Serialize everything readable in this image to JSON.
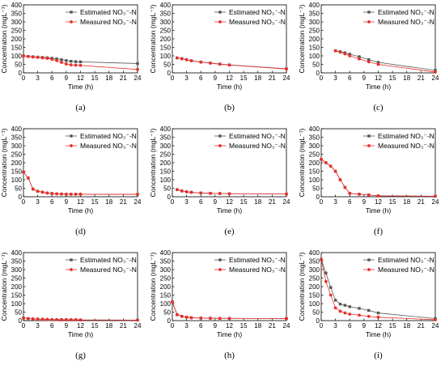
{
  "figure": {
    "background": "#ffffff"
  },
  "style": {
    "estimated_color": "#555555",
    "measured_color": "#e8302c"
  },
  "chart_data": [
    {
      "type": "line",
      "caption": "(a)",
      "xlabel": "Time (h)",
      "ylabel": "Concentration (mgL⁻¹)",
      "xlim": [
        0,
        24
      ],
      "ylim": [
        0,
        400
      ],
      "xticks": [
        0,
        3,
        6,
        9,
        12,
        15,
        18,
        21,
        24
      ],
      "yticks": [
        0,
        50,
        100,
        150,
        200,
        250,
        300,
        350,
        400
      ],
      "legend_position": "top-right",
      "series": [
        {
          "name": "Estimated NO₃⁻-N",
          "marker": "square",
          "x": [
            0,
            1,
            2,
            3,
            4,
            5,
            6,
            7,
            8,
            9,
            10,
            11,
            12,
            24
          ],
          "y": [
            100,
            97,
            95,
            93,
            91,
            89,
            86,
            82,
            78,
            72,
            68,
            66,
            65,
            55
          ]
        },
        {
          "name": "Measured NO₃⁻-N",
          "marker": "circle",
          "x": [
            0,
            1,
            2,
            3,
            4,
            5,
            6,
            7,
            8,
            9,
            10,
            11,
            12,
            24
          ],
          "y": [
            100,
            96,
            93,
            91,
            88,
            85,
            80,
            72,
            62,
            52,
            47,
            45,
            44,
            20
          ]
        }
      ]
    },
    {
      "type": "line",
      "caption": "(b)",
      "xlabel": "Time (h)",
      "ylabel": "Concentration (mgL⁻¹)",
      "xlim": [
        0,
        24
      ],
      "ylim": [
        0,
        400
      ],
      "xticks": [
        0,
        3,
        6,
        9,
        12,
        15,
        18,
        21,
        24
      ],
      "yticks": [
        0,
        50,
        100,
        150,
        200,
        250,
        300,
        350,
        400
      ],
      "legend_position": "top-right",
      "series": [
        {
          "name": "Estimated NO₃⁻-N",
          "marker": "square",
          "x": [
            1,
            2,
            3,
            4,
            6,
            8,
            10,
            12,
            24
          ],
          "y": [
            88,
            84,
            78,
            72,
            64,
            58,
            52,
            47,
            24
          ]
        },
        {
          "name": "Measured NO₃⁻-N",
          "marker": "circle",
          "x": [
            1,
            2,
            3,
            4,
            6,
            8,
            10,
            12,
            24
          ],
          "y": [
            88,
            83,
            77,
            71,
            63,
            57,
            51,
            46,
            23
          ]
        }
      ]
    },
    {
      "type": "line",
      "caption": "(c)",
      "xlabel": "Time (h)",
      "ylabel": "Concentration (mgL⁻¹)",
      "xlim": [
        0,
        24
      ],
      "ylim": [
        0,
        400
      ],
      "xticks": [
        0,
        3,
        6,
        9,
        12,
        15,
        18,
        21,
        24
      ],
      "yticks": [
        0,
        50,
        100,
        150,
        200,
        250,
        300,
        350,
        400
      ],
      "legend_position": "top-right",
      "series": [
        {
          "name": "Estimated NO₃⁻-N",
          "marker": "square",
          "x": [
            3,
            4,
            5,
            6,
            8,
            10,
            12,
            24
          ],
          "y": [
            130,
            125,
            118,
            110,
            95,
            78,
            62,
            15
          ]
        },
        {
          "name": "Measured NO₃⁻-N",
          "marker": "circle",
          "x": [
            3,
            4,
            5,
            6,
            8,
            10,
            12,
            24
          ],
          "y": [
            130,
            122,
            112,
            100,
            82,
            65,
            50,
            5
          ]
        }
      ]
    },
    {
      "type": "line",
      "caption": "(d)",
      "xlabel": "Time (h)",
      "ylabel": "Concentration (mgL⁻¹)",
      "xlim": [
        0,
        24
      ],
      "ylim": [
        0,
        400
      ],
      "xticks": [
        0,
        3,
        6,
        9,
        12,
        15,
        18,
        21,
        24
      ],
      "yticks": [
        0,
        50,
        100,
        150,
        200,
        250,
        300,
        350,
        400
      ],
      "legend_position": "top-right",
      "series": [
        {
          "name": "Estimated NO₃⁻-N",
          "marker": "square",
          "x": [
            0,
            1,
            2,
            3,
            4,
            5,
            6,
            7,
            8,
            9,
            10,
            11,
            12,
            24
          ],
          "y": [
            145,
            110,
            45,
            32,
            27,
            22,
            19,
            17,
            16,
            15,
            15,
            15,
            15,
            14
          ]
        },
        {
          "name": "Measured NO₃⁻-N",
          "marker": "circle",
          "x": [
            0,
            1,
            2,
            3,
            4,
            5,
            6,
            7,
            8,
            9,
            10,
            11,
            12,
            24
          ],
          "y": [
            145,
            110,
            45,
            32,
            27,
            22,
            19,
            17,
            16,
            15,
            15,
            15,
            15,
            14
          ]
        }
      ]
    },
    {
      "type": "line",
      "caption": "(e)",
      "xlabel": "Time (h)",
      "ylabel": "Concentration (mgL⁻¹)",
      "xlim": [
        0,
        24
      ],
      "ylim": [
        0,
        400
      ],
      "xticks": [
        0,
        3,
        6,
        9,
        12,
        15,
        18,
        21,
        24
      ],
      "yticks": [
        0,
        50,
        100,
        150,
        200,
        250,
        300,
        350,
        400
      ],
      "legend_position": "top-right",
      "series": [
        {
          "name": "Estimated NO₃⁻-N",
          "marker": "square",
          "x": [
            1,
            2,
            3,
            4,
            6,
            8,
            10,
            12,
            24
          ],
          "y": [
            42,
            34,
            29,
            26,
            22,
            20,
            19,
            18,
            16
          ]
        },
        {
          "name": "Measured NO₃⁻-N",
          "marker": "circle",
          "x": [
            1,
            2,
            3,
            4,
            6,
            8,
            10,
            12,
            24
          ],
          "y": [
            42,
            34,
            29,
            26,
            22,
            20,
            19,
            18,
            16
          ]
        }
      ]
    },
    {
      "type": "line",
      "caption": "(f)",
      "xlabel": "Time (h)",
      "ylabel": "Concentration (mgL⁻¹)",
      "xlim": [
        0,
        24
      ],
      "ylim": [
        0,
        400
      ],
      "xticks": [
        0,
        3,
        6,
        9,
        12,
        15,
        18,
        21,
        24
      ],
      "yticks": [
        0,
        50,
        100,
        150,
        200,
        250,
        300,
        350,
        400
      ],
      "legend_position": "top-right",
      "series": [
        {
          "name": "Estimated NO₃⁻-N",
          "marker": "square",
          "x": [
            0,
            1,
            2,
            3,
            4,
            5,
            6,
            8,
            10,
            12,
            24
          ],
          "y": [
            220,
            200,
            180,
            150,
            100,
            55,
            20,
            15,
            10,
            5,
            3
          ]
        },
        {
          "name": "Measured NO₃⁻-N",
          "marker": "circle",
          "x": [
            0,
            1,
            2,
            3,
            4,
            5,
            6,
            8,
            10,
            12,
            24
          ],
          "y": [
            220,
            200,
            180,
            150,
            100,
            55,
            20,
            15,
            10,
            5,
            3
          ]
        }
      ]
    },
    {
      "type": "line",
      "caption": "(g)",
      "xlabel": "Time (h)",
      "ylabel": "Concentration (mgL⁻¹)",
      "xlim": [
        0,
        24
      ],
      "ylim": [
        0,
        400
      ],
      "xticks": [
        0,
        3,
        6,
        9,
        12,
        15,
        18,
        21,
        24
      ],
      "yticks": [
        0,
        50,
        100,
        150,
        200,
        250,
        300,
        350,
        400
      ],
      "legend_position": "top-right",
      "series": [
        {
          "name": "Estimated NO₃⁻-N",
          "marker": "square",
          "x": [
            0,
            1,
            2,
            3,
            4,
            5,
            6,
            7,
            8,
            9,
            10,
            11,
            12,
            24
          ],
          "y": [
            15,
            12,
            10,
            9,
            8,
            7,
            6,
            6,
            5,
            5,
            5,
            5,
            4,
            3
          ]
        },
        {
          "name": "Measured NO₃⁻-N",
          "marker": "circle",
          "x": [
            0,
            1,
            2,
            3,
            4,
            5,
            6,
            7,
            8,
            9,
            10,
            11,
            12,
            24
          ],
          "y": [
            15,
            12,
            10,
            9,
            8,
            7,
            6,
            6,
            5,
            5,
            5,
            5,
            4,
            3
          ]
        }
      ]
    },
    {
      "type": "line",
      "caption": "(h)",
      "xlabel": "Time (h)",
      "ylabel": "Concentration (mgL⁻¹)",
      "xlim": [
        0,
        24
      ],
      "ylim": [
        0,
        400
      ],
      "xticks": [
        0,
        3,
        6,
        9,
        12,
        15,
        18,
        21,
        24
      ],
      "yticks": [
        0,
        50,
        100,
        150,
        200,
        250,
        300,
        350,
        400
      ],
      "legend_position": "top-right",
      "series": [
        {
          "name": "Estimated NO₃⁻-N",
          "marker": "square",
          "x": [
            0,
            1,
            2,
            3,
            4,
            6,
            8,
            10,
            12,
            24
          ],
          "y": [
            110,
            35,
            25,
            20,
            17,
            15,
            14,
            13,
            13,
            12
          ]
        },
        {
          "name": "Measured NO₃⁻-N",
          "marker": "circle",
          "x": [
            0,
            1,
            2,
            3,
            4,
            6,
            8,
            10,
            12,
            24
          ],
          "y": [
            110,
            35,
            25,
            20,
            17,
            15,
            14,
            13,
            13,
            12
          ]
        }
      ]
    },
    {
      "type": "line",
      "caption": "(i)",
      "xlabel": "Time (h)",
      "ylabel": "Concentration (mgL⁻¹)",
      "xlim": [
        0,
        24
      ],
      "ylim": [
        0,
        400
      ],
      "xticks": [
        0,
        3,
        6,
        9,
        12,
        15,
        18,
        21,
        24
      ],
      "yticks": [
        0,
        50,
        100,
        150,
        200,
        250,
        300,
        350,
        400
      ],
      "legend_position": "top-right",
      "series": [
        {
          "name": "Estimated NO₃⁻-N",
          "marker": "square",
          "x": [
            0,
            1,
            2,
            3,
            4,
            5,
            6,
            8,
            10,
            12,
            24
          ],
          "y": [
            360,
            280,
            195,
            120,
            97,
            90,
            82,
            72,
            60,
            45,
            12
          ]
        },
        {
          "name": "Measured NO₃⁻-N",
          "marker": "circle",
          "x": [
            0,
            1,
            2,
            3,
            4,
            5,
            6,
            8,
            10,
            12,
            24
          ],
          "y": [
            360,
            230,
            150,
            75,
            55,
            45,
            38,
            32,
            25,
            20,
            5
          ]
        }
      ]
    }
  ]
}
